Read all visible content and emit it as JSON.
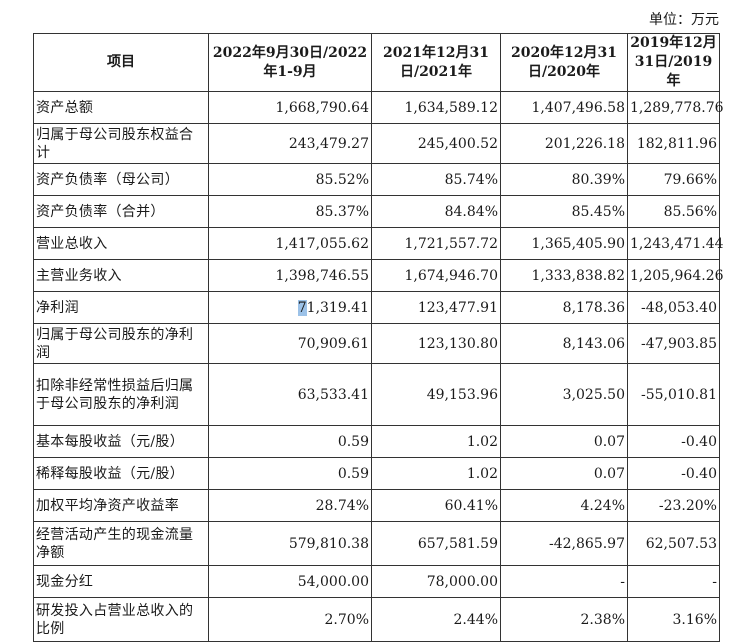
{
  "unit_label": "单位：万元",
  "header": {
    "item": "项目",
    "periods": [
      "2022年9月30日/2022年1-9月",
      "2021年12月31日/2021年",
      "2020年12月31日/2020年",
      "2019年12月31日/2019年"
    ]
  },
  "rows": [
    {
      "label": "资产总额",
      "values": [
        "1,668,790.64",
        "1,634,589.12",
        "1,407,496.58",
        "1,289,778.76"
      ]
    },
    {
      "label": "归属于母公司股东权益合计",
      "values": [
        "243,479.27",
        "245,400.52",
        "201,226.18",
        "182,811.96"
      ]
    },
    {
      "label": "资产负债率（母公司）",
      "values": [
        "85.52%",
        "85.74%",
        "80.39%",
        "79.66%"
      ]
    },
    {
      "label": "资产负债率（合并）",
      "values": [
        "85.37%",
        "84.84%",
        "85.45%",
        "85.56%"
      ]
    },
    {
      "label": "营业总收入",
      "values": [
        "1,417,055.62",
        "1,721,557.72",
        "1,365,405.90",
        "1,243,471.44"
      ]
    },
    {
      "label": "主营业务收入",
      "values": [
        "1,398,746.55",
        "1,674,946.70",
        "1,333,838.82",
        "1,205,964.26"
      ]
    },
    {
      "label": "净利润",
      "values": [
        "71,319.41",
        "123,477.91",
        "8,178.36",
        "-48,053.40"
      ]
    },
    {
      "label": "归属于母公司股东的净利润",
      "values": [
        "70,909.61",
        "123,130.80",
        "8,143.06",
        "-47,903.85"
      ]
    },
    {
      "label": "扣除非经常性损益后归属于母公司股东的净利润",
      "values": [
        "63,533.41",
        "49,153.96",
        "3,025.50",
        "-55,010.81"
      ]
    },
    {
      "label": "基本每股收益（元/股）",
      "values": [
        "0.59",
        "1.02",
        "0.07",
        "-0.40"
      ]
    },
    {
      "label": "稀释每股收益（元/股）",
      "values": [
        "0.59",
        "1.02",
        "0.07",
        "-0.40"
      ]
    },
    {
      "label": "加权平均净资产收益率",
      "values": [
        "28.74%",
        "60.41%",
        "4.24%",
        "-23.20%"
      ]
    },
    {
      "label": "经营活动产生的现金流量净额",
      "values": [
        "579,810.38",
        "657,581.59",
        "-42,865.97",
        "62,507.53"
      ]
    },
    {
      "label": "现金分红",
      "values": [
        "54,000.00",
        "78,000.00",
        "-",
        "-"
      ]
    },
    {
      "label": "研发投入占营业总收入的比例",
      "values": [
        "2.70%",
        "2.44%",
        "2.38%",
        "3.16%"
      ]
    }
  ]
}
